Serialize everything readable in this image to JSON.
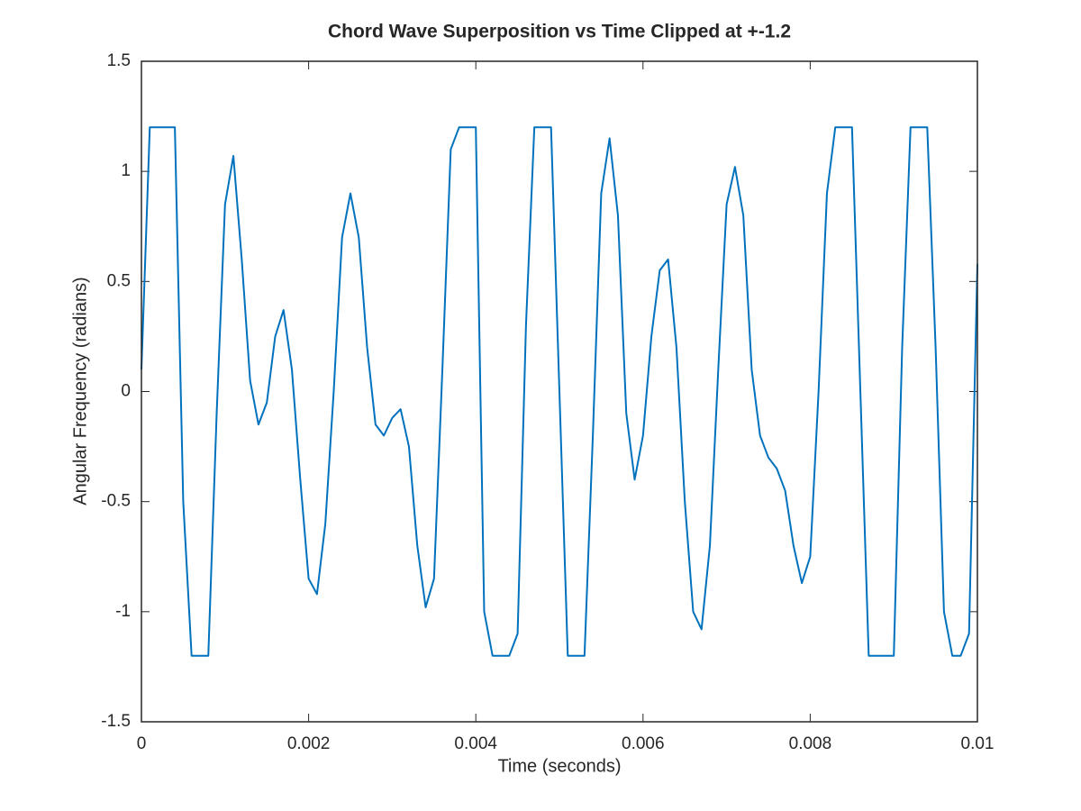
{
  "chart_data": {
    "type": "line",
    "title": "Chord Wave Superposition vs Time Clipped at +-1.2",
    "xlabel": "Time (seconds)",
    "ylabel": "Angular Frequency (radians)",
    "color": "#0072bd",
    "x": [
      0,
      0.0001,
      0.0002,
      0.0003,
      0.0004,
      0.0005,
      0.0006,
      0.0007,
      0.0008,
      0.0009,
      0.001,
      0.0011,
      0.0012,
      0.0013,
      0.0014,
      0.0015,
      0.0016,
      0.0017,
      0.0018,
      0.0019,
      0.002,
      0.0021,
      0.0022,
      0.0023,
      0.0024,
      0.0025,
      0.0026,
      0.0027,
      0.0028,
      0.0029,
      0.003,
      0.0031,
      0.0032,
      0.0033,
      0.0034,
      0.0035,
      0.0036,
      0.0037,
      0.0038,
      0.0039,
      0.004,
      0.0041,
      0.0042,
      0.0043,
      0.0044,
      0.0045,
      0.0046,
      0.0047,
      0.0048,
      0.0049,
      0.005,
      0.0051,
      0.0052,
      0.0053,
      0.0054,
      0.0055,
      0.0056,
      0.0057,
      0.0058,
      0.0059,
      0.006,
      0.0061,
      0.0062,
      0.0063,
      0.0064,
      0.0065,
      0.0066,
      0.0067,
      0.0068,
      0.0069,
      0.007,
      0.0071,
      0.0072,
      0.0073,
      0.0074,
      0.0075,
      0.0076,
      0.0077,
      0.0078,
      0.0079,
      0.008,
      0.0081,
      0.0082,
      0.0083,
      0.0084,
      0.0085,
      0.0086,
      0.0087,
      0.0088,
      0.0089,
      0.009,
      0.0091,
      0.0092,
      0.0093,
      0.0094,
      0.0095,
      0.0096,
      0.0097,
      0.0098,
      0.0099,
      0.01
    ],
    "values": [
      0.1,
      1.2,
      1.2,
      1.2,
      1.2,
      -0.5,
      -1.2,
      -1.2,
      -1.2,
      -0.1,
      0.85,
      1.07,
      0.6,
      0.05,
      -0.15,
      -0.05,
      0.25,
      0.37,
      0.1,
      -0.4,
      -0.85,
      -0.92,
      -0.6,
      0.0,
      0.7,
      0.9,
      0.7,
      0.2,
      -0.15,
      -0.2,
      -0.12,
      -0.08,
      -0.25,
      -0.7,
      -0.98,
      -0.85,
      0.1,
      1.1,
      1.2,
      1.2,
      1.2,
      -1.0,
      -1.2,
      -1.2,
      -1.2,
      -1.1,
      0.3,
      1.2,
      1.2,
      1.2,
      0.0,
      -1.2,
      -1.2,
      -1.2,
      -0.2,
      0.9,
      1.15,
      0.8,
      -0.1,
      -0.4,
      -0.2,
      0.25,
      0.55,
      0.6,
      0.2,
      -0.5,
      -1.0,
      -1.08,
      -0.7,
      0.1,
      0.85,
      1.02,
      0.8,
      0.1,
      -0.2,
      -0.3,
      -0.35,
      -0.45,
      -0.7,
      -0.87,
      -0.75,
      0.0,
      0.9,
      1.2,
      1.2,
      1.2,
      0.0,
      -1.2,
      -1.2,
      -1.2,
      -1.2,
      0.2,
      1.2,
      1.2,
      1.2,
      0.2,
      -1.0,
      -1.2,
      -1.2,
      -1.1,
      0.58
    ],
    "xlim": [
      0,
      0.01
    ],
    "xticks": [
      0,
      0.002,
      0.004,
      0.006,
      0.008,
      0.01
    ],
    "ylim": [
      -1.5,
      1.5
    ],
    "yticks": [
      -1.5,
      -1,
      -0.5,
      0,
      0.5,
      1,
      1.5
    ],
    "grid": false
  }
}
